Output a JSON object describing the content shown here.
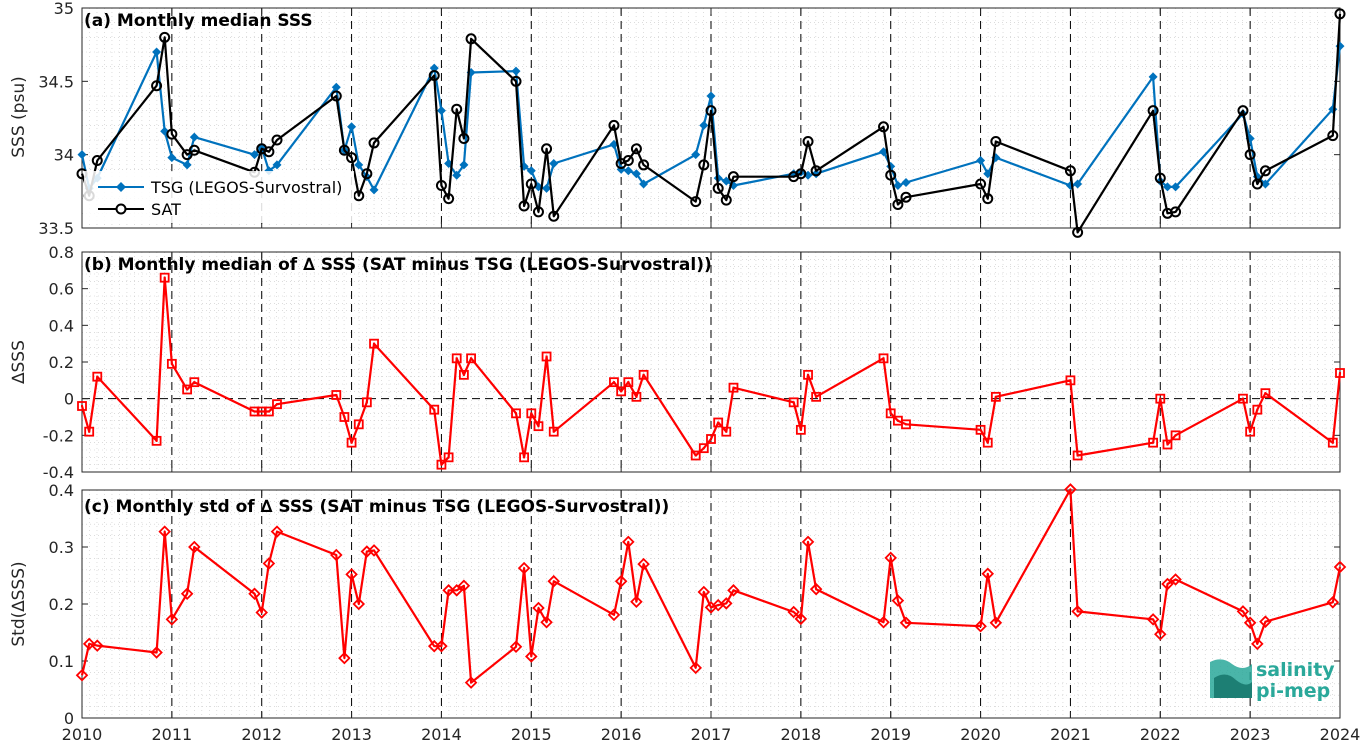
{
  "chart_data": [
    {
      "type": "line",
      "title": "(a) Monthly median SSS",
      "xlabel": "",
      "ylabel": "SSS (psu)",
      "xlim": [
        2010,
        2024
      ],
      "ylim": [
        33.5,
        35
      ],
      "yticks": [
        "33.5",
        "34",
        "34.5",
        "35"
      ],
      "grid": "minor dotted",
      "legend_position": "left",
      "series": [
        {
          "name": "TSG (LEGOS-Survostral)",
          "color": "#0072BD",
          "marker": "diamond",
          "x": [
            2010.0,
            2010.08,
            2010.17,
            2010.83,
            2010.92,
            2011.0,
            2011.17,
            2011.25,
            2011.92,
            2012.0,
            2012.08,
            2012.17,
            2012.83,
            2012.92,
            2013.0,
            2013.08,
            2013.17,
            2013.25,
            2013.92,
            2014.0,
            2014.08,
            2014.17,
            2014.25,
            2014.33,
            2014.83,
            2014.92,
            2015.0,
            2015.08,
            2015.17,
            2015.25,
            2015.92,
            2016.0,
            2016.08,
            2016.17,
            2016.25,
            2016.83,
            2016.92,
            2017.0,
            2017.08,
            2017.17,
            2017.25,
            2017.92,
            2018.0,
            2018.08,
            2018.17,
            2018.92,
            2019.0,
            2019.08,
            2019.17,
            2020.0,
            2020.08,
            2020.17,
            2021.0,
            2021.08,
            2021.92,
            2022.0,
            2022.08,
            2022.17,
            2022.92,
            2023.0,
            2023.08,
            2023.17,
            2023.92,
            2024.0
          ],
          "values": [
            34.0,
            33.77,
            33.84,
            34.7,
            34.16,
            33.98,
            33.93,
            34.12,
            34.0,
            34.05,
            33.89,
            33.93,
            34.46,
            34.03,
            34.19,
            33.93,
            33.85,
            33.76,
            34.59,
            34.3,
            33.94,
            33.86,
            33.93,
            34.56,
            34.57,
            33.92,
            33.89,
            33.78,
            33.77,
            33.94,
            34.07,
            33.9,
            33.89,
            33.87,
            33.8,
            34.0,
            34.2,
            34.4,
            33.84,
            33.82,
            33.79,
            33.87,
            33.88,
            33.86,
            33.87,
            34.02,
            33.92,
            33.79,
            33.81,
            33.96,
            33.87,
            33.98,
            33.79,
            33.8,
            34.53,
            33.82,
            33.78,
            33.78,
            34.28,
            34.11,
            33.85,
            33.8,
            34.31,
            34.74
          ]
        },
        {
          "name": "SAT",
          "color": "#000000",
          "marker": "circle",
          "x": [
            2010.0,
            2010.08,
            2010.17,
            2010.83,
            2010.92,
            2011.0,
            2011.17,
            2011.25,
            2011.92,
            2012.0,
            2012.08,
            2012.17,
            2012.83,
            2012.92,
            2013.0,
            2013.08,
            2013.17,
            2013.25,
            2013.92,
            2014.0,
            2014.08,
            2014.17,
            2014.25,
            2014.33,
            2014.83,
            2014.92,
            2015.0,
            2015.08,
            2015.17,
            2015.25,
            2015.92,
            2016.0,
            2016.08,
            2016.17,
            2016.25,
            2016.83,
            2016.92,
            2017.0,
            2017.08,
            2017.17,
            2017.25,
            2017.92,
            2018.0,
            2018.08,
            2018.17,
            2018.92,
            2019.0,
            2019.08,
            2019.17,
            2020.0,
            2020.08,
            2020.17,
            2021.0,
            2021.08,
            2021.92,
            2022.0,
            2022.08,
            2022.17,
            2022.92,
            2023.0,
            2023.08,
            2023.17,
            2023.92,
            2024.0
          ],
          "values": [
            33.87,
            33.72,
            33.96,
            34.47,
            34.8,
            34.14,
            34.0,
            34.03,
            33.88,
            34.04,
            34.02,
            34.1,
            34.4,
            34.03,
            33.98,
            33.72,
            33.87,
            34.08,
            34.54,
            33.79,
            33.7,
            34.31,
            34.11,
            34.79,
            34.5,
            33.65,
            33.8,
            33.61,
            34.04,
            33.58,
            34.2,
            33.94,
            33.96,
            34.04,
            33.93,
            33.68,
            33.93,
            34.3,
            33.77,
            33.69,
            33.85,
            33.85,
            33.87,
            34.09,
            33.89,
            34.19,
            33.86,
            33.66,
            33.71,
            33.8,
            33.7,
            34.09,
            33.89,
            33.47,
            34.3,
            33.84,
            33.6,
            33.61,
            34.3,
            34.0,
            33.8,
            33.89,
            34.13,
            34.96
          ]
        }
      ]
    },
    {
      "type": "line",
      "title": "(b) Monthly median of ∆ SSS (SAT minus TSG (LEGOS-Survostral))",
      "xlabel": "",
      "ylabel": "∆SSS",
      "xlim": [
        2010,
        2024
      ],
      "ylim": [
        -0.4,
        0.8
      ],
      "yticks": [
        "-0.4",
        "-0.2",
        "0",
        "0.2",
        "0.4",
        "0.6",
        "0.8"
      ],
      "reference_line": 0,
      "series": [
        {
          "color": "#FF0000",
          "marker": "square",
          "x": [
            2010.0,
            2010.08,
            2010.17,
            2010.83,
            2010.92,
            2011.0,
            2011.17,
            2011.25,
            2011.92,
            2012.0,
            2012.08,
            2012.17,
            2012.83,
            2012.92,
            2013.0,
            2013.08,
            2013.17,
            2013.25,
            2013.92,
            2014.0,
            2014.08,
            2014.17,
            2014.25,
            2014.33,
            2014.83,
            2014.92,
            2015.0,
            2015.08,
            2015.17,
            2015.25,
            2015.92,
            2016.0,
            2016.08,
            2016.17,
            2016.25,
            2016.83,
            2016.92,
            2017.0,
            2017.08,
            2017.17,
            2017.25,
            2017.92,
            2018.0,
            2018.08,
            2018.17,
            2018.92,
            2019.0,
            2019.08,
            2019.17,
            2020.0,
            2020.08,
            2020.17,
            2021.0,
            2021.08,
            2021.92,
            2022.0,
            2022.08,
            2022.17,
            2022.92,
            2023.0,
            2023.08,
            2023.17,
            2023.92,
            2024.0
          ],
          "values": [
            -0.04,
            -0.18,
            0.12,
            -0.23,
            0.66,
            0.19,
            0.05,
            0.09,
            -0.07,
            -0.07,
            -0.07,
            -0.03,
            0.02,
            -0.1,
            -0.24,
            -0.14,
            -0.02,
            0.3,
            -0.06,
            -0.36,
            -0.32,
            0.22,
            0.13,
            0.22,
            -0.08,
            -0.32,
            -0.08,
            -0.15,
            0.23,
            -0.18,
            0.09,
            0.04,
            0.09,
            0.01,
            0.13,
            -0.31,
            -0.27,
            -0.22,
            -0.13,
            -0.18,
            0.06,
            -0.02,
            -0.17,
            0.13,
            0.01,
            0.22,
            -0.08,
            -0.12,
            -0.14,
            -0.17,
            -0.24,
            0.01,
            0.1,
            -0.31,
            -0.24,
            0.0,
            -0.25,
            -0.2,
            0.0,
            -0.18,
            -0.06,
            0.03,
            -0.24,
            0.14
          ]
        }
      ]
    },
    {
      "type": "line",
      "title": "(c) Monthly std of ∆ SSS (SAT minus TSG (LEGOS-Survostral))",
      "xlabel": "",
      "ylabel": "Std(∆SSS)",
      "xlim": [
        2010,
        2024
      ],
      "ylim": [
        0,
        0.4
      ],
      "yticks": [
        "0",
        "0.1",
        "0.2",
        "0.3",
        "0.4"
      ],
      "xticks": [
        "2010",
        "2011",
        "2012",
        "2013",
        "2014",
        "2015",
        "2016",
        "2017",
        "2018",
        "2019",
        "2020",
        "2021",
        "2022",
        "2023",
        "2024"
      ],
      "series": [
        {
          "color": "#FF0000",
          "marker": "diamond",
          "x": [
            2010.0,
            2010.08,
            2010.17,
            2010.83,
            2010.92,
            2011.0,
            2011.17,
            2011.25,
            2011.92,
            2012.0,
            2012.08,
            2012.17,
            2012.83,
            2012.92,
            2013.0,
            2013.08,
            2013.17,
            2013.25,
            2013.92,
            2014.0,
            2014.08,
            2014.17,
            2014.25,
            2014.33,
            2014.83,
            2014.92,
            2015.0,
            2015.08,
            2015.17,
            2015.25,
            2015.92,
            2016.0,
            2016.08,
            2016.17,
            2016.25,
            2016.83,
            2016.92,
            2017.0,
            2017.08,
            2017.17,
            2017.25,
            2017.92,
            2018.0,
            2018.08,
            2018.17,
            2018.92,
            2019.0,
            2019.08,
            2019.17,
            2020.0,
            2020.08,
            2020.17,
            2021.0,
            2021.08,
            2021.92,
            2022.0,
            2022.08,
            2022.17,
            2022.92,
            2023.0,
            2023.08,
            2023.17,
            2023.92,
            2024.0
          ],
          "values": [
            0.075,
            0.13,
            0.127,
            0.115,
            0.327,
            0.173,
            0.218,
            0.3,
            0.218,
            0.185,
            0.271,
            0.327,
            0.286,
            0.105,
            0.252,
            0.2,
            0.292,
            0.294,
            0.126,
            0.126,
            0.224,
            0.224,
            0.232,
            0.062,
            0.125,
            0.263,
            0.108,
            0.193,
            0.168,
            0.24,
            0.181,
            0.24,
            0.309,
            0.204,
            0.27,
            0.088,
            0.221,
            0.194,
            0.198,
            0.201,
            0.224,
            0.186,
            0.174,
            0.309,
            0.226,
            0.168,
            0.281,
            0.206,
            0.167,
            0.161,
            0.253,
            0.167,
            0.401,
            0.187,
            0.173,
            0.147,
            0.235,
            0.243,
            0.187,
            0.167,
            0.13,
            0.169,
            0.203,
            0.265
          ]
        }
      ]
    }
  ],
  "logo": {
    "line1": "salinity",
    "line2": "pi-mep"
  }
}
